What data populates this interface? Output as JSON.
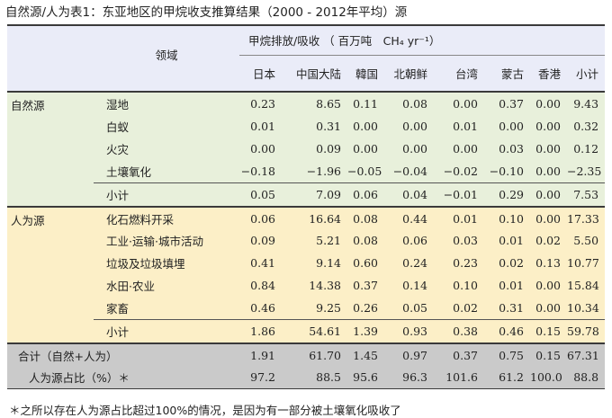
{
  "title": "自然源/人为表1：东亚地区的甲烷收支推算结果（2000 - 2012年平均）源",
  "header": {
    "sector_label": "领域",
    "group_label": "甲烷排放/吸收 （ 百万吨　CH₄ yr⁻¹）",
    "columns": [
      "日本",
      "中国大陆",
      "韓国",
      "北朝鲜",
      "台湾",
      "蒙古",
      "香港",
      "小计"
    ]
  },
  "natural": {
    "category": "自然源",
    "rows": [
      {
        "label": "湿地",
        "values": [
          "0.23",
          "8.65",
          "0.11",
          "0.08",
          "0.00",
          "0.37",
          "0.00",
          "9.43"
        ]
      },
      {
        "label": "白蚁",
        "values": [
          "0.01",
          "0.31",
          "0.00",
          "0.00",
          "0.01",
          "0.00",
          "0.00",
          "0.32"
        ]
      },
      {
        "label": "火灾",
        "values": [
          "0.00",
          "0.09",
          "0.00",
          "0.00",
          "0.00",
          "0.03",
          "0.00",
          "0.12"
        ]
      },
      {
        "label": "土壤氧化",
        "values": [
          "−0.18",
          "−1.96",
          "−0.05",
          "−0.04",
          "−0.02",
          "−0.10",
          "0.00",
          "−2.35"
        ]
      }
    ],
    "subtotal": {
      "label": "小计",
      "values": [
        "0.05",
        "7.09",
        "0.06",
        "0.04",
        "−0.01",
        "0.29",
        "0.00",
        "7.53"
      ]
    }
  },
  "anthropogenic": {
    "category": "人为源",
    "rows": [
      {
        "label": "化石燃料开采",
        "values": [
          "0.06",
          "16.64",
          "0.08",
          "0.44",
          "0.01",
          "0.10",
          "0.00",
          "17.33"
        ]
      },
      {
        "label": "工业·运输·城市活动",
        "values": [
          "0.09",
          "5.21",
          "0.08",
          "0.06",
          "0.03",
          "0.01",
          "0.02",
          "5.50"
        ]
      },
      {
        "label": "垃圾及垃圾填埋",
        "values": [
          "0.41",
          "9.14",
          "0.60",
          "0.24",
          "0.23",
          "0.02",
          "0.13",
          "10.77"
        ]
      },
      {
        "label": "水田·农业",
        "values": [
          "0.84",
          "14.38",
          "0.37",
          "0.14",
          "0.10",
          "0.01",
          "0.00",
          "15.84"
        ]
      },
      {
        "label": "家畜",
        "values": [
          "0.46",
          "9.25",
          "0.26",
          "0.05",
          "0.02",
          "0.31",
          "0.00",
          "10.34"
        ]
      }
    ],
    "subtotal": {
      "label": "小计",
      "values": [
        "1.86",
        "54.61",
        "1.39",
        "0.93",
        "0.38",
        "0.46",
        "0.15",
        "59.78"
      ]
    }
  },
  "total": {
    "label": "合计（自然+人为）",
    "values": [
      "1.91",
      "61.70",
      "1.45",
      "0.97",
      "0.37",
      "0.75",
      "0.15",
      "67.31"
    ]
  },
  "share": {
    "label": "人为源占比（%）＊",
    "values": [
      "97.2",
      "88.5",
      "95.6",
      "96.3",
      "101.6",
      "61.2",
      "100.0",
      "88.8"
    ]
  },
  "footnote": "＊之所以存在人为源占比超过100%的情况，是因为有一部分被土壤氧化吸收了"
}
